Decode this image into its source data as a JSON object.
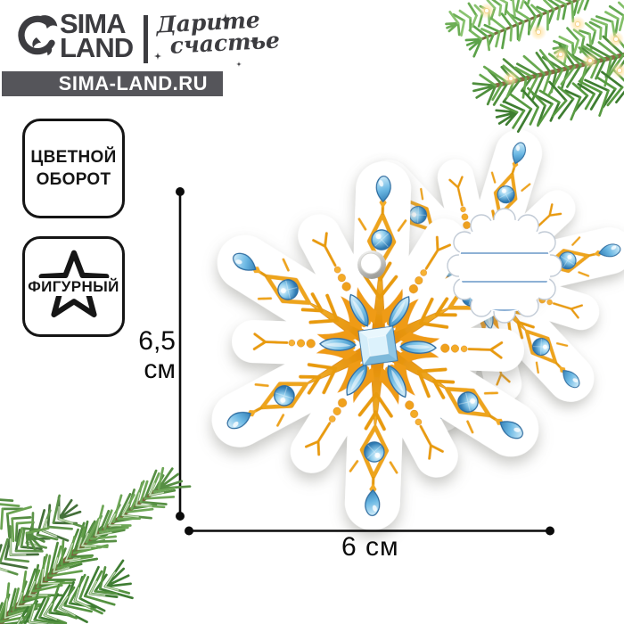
{
  "logo": {
    "brand_line1": "SIMA",
    "brand_line2": "LAND",
    "tagline_line1": "Дарите",
    "tagline_line2": "счастье",
    "website": "SIMA-LAND.RU"
  },
  "features": {
    "badge1_line1": "ЦВЕТНОЙ",
    "badge1_line2": "ОБОРОТ",
    "badge2_label": "ФИГУРНЫЙ"
  },
  "dimensions": {
    "height_value": "6,5",
    "height_unit": "см",
    "width_label": "6 см"
  },
  "product": {
    "item": "снежинка — фигурная подвесная открытка-шильдик",
    "front_design": "золотая снежинка с голубыми кристаллами",
    "back_design": "оборот с линиями для подписи"
  },
  "colors": {
    "ink": "#3c3c40",
    "bar": "#55555a",
    "gold": "#f2a723",
    "gem_blue": "#5fb6e6",
    "branch_green": "#548f41",
    "rule_blue": "#7ea6cf"
  }
}
